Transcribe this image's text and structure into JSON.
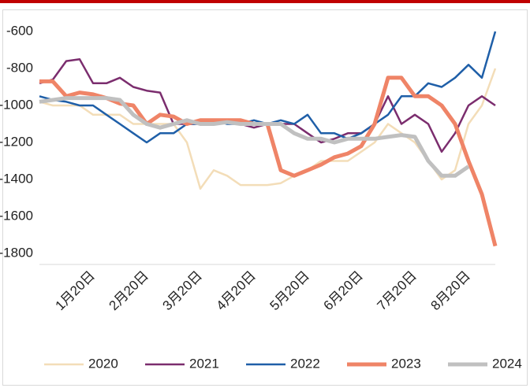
{
  "chart_data": {
    "type": "line",
    "categories": [
      null,
      null,
      null,
      null,
      "1月20日",
      null,
      null,
      null,
      "2月20日",
      null,
      null,
      null,
      "3月20日",
      null,
      null,
      null,
      "4月20日",
      null,
      null,
      null,
      "5月20日",
      null,
      null,
      null,
      "6月20日",
      null,
      null,
      null,
      "7月20日",
      null,
      null,
      null,
      "8月20日",
      null,
      null
    ],
    "ylim": [
      -1800,
      -600
    ],
    "yticks": [
      -1800,
      -1600,
      -1400,
      -1200,
      -1000,
      -800,
      -600
    ],
    "legend": "bottom",
    "series": [
      {
        "name": "2020",
        "color": "#f3ddb8",
        "values": [
          -980,
          -1000,
          -1000,
          -1000,
          -1050,
          -1050,
          -1050,
          -1100,
          -1100,
          -1100,
          -1100,
          -1200,
          -1450,
          -1350,
          -1380,
          -1430,
          -1430,
          -1430,
          -1420,
          -1380,
          -1350,
          -1300,
          -1300,
          -1300,
          -1250,
          -1200,
          -1100,
          -1150,
          -1200,
          -1300,
          -1400,
          -1350,
          -1100,
          -1000,
          -800
        ]
      },
      {
        "name": "2021",
        "color": "#7b2d6e",
        "values": [
          -880,
          -860,
          -760,
          -750,
          -880,
          -880,
          -850,
          -900,
          -920,
          -930,
          -1100,
          -1100,
          -1100,
          -1080,
          -1080,
          -1100,
          -1120,
          -1100,
          -1100,
          -1100,
          -1150,
          -1200,
          -1180,
          -1150,
          -1150,
          -1100,
          -950,
          -1100,
          -1050,
          -1100,
          -1250,
          -1150,
          -1000,
          -950,
          -1000
        ]
      },
      {
        "name": "2022",
        "color": "#1f5fa8",
        "values": [
          -950,
          -970,
          -980,
          -1000,
          -1000,
          -1050,
          -1100,
          -1150,
          -1200,
          -1150,
          -1150,
          -1100,
          -1100,
          -1080,
          -1100,
          -1100,
          -1080,
          -1100,
          -1080,
          -1100,
          -1050,
          -1150,
          -1150,
          -1180,
          -1150,
          -1100,
          -1050,
          -950,
          -950,
          -880,
          -900,
          -850,
          -780,
          -850,
          -600
        ]
      },
      {
        "name": "2023",
        "color": "#ef8467",
        "values": [
          -870,
          -870,
          -950,
          -930,
          -940,
          -960,
          -990,
          -1000,
          -1100,
          -1050,
          -1060,
          -1100,
          -1080,
          -1080,
          -1080,
          -1080,
          -1100,
          -1100,
          -1350,
          -1380,
          -1350,
          -1320,
          -1280,
          -1260,
          -1220,
          -1100,
          -850,
          -850,
          -950,
          -950,
          -1000,
          -1100,
          -1300,
          -1480,
          -1760
        ]
      },
      {
        "name": "2024",
        "color": "#c0c0c0",
        "values": [
          -980,
          -970,
          -960,
          -960,
          -960,
          -960,
          -970,
          -1050,
          -1100,
          -1120,
          -1100,
          -1080,
          -1100,
          -1100,
          -1090,
          -1100,
          -1100,
          -1100,
          -1100,
          -1150,
          -1180,
          -1180,
          -1200,
          -1180,
          -1180,
          -1180,
          -1170,
          -1160,
          -1170,
          -1300,
          -1380,
          -1380,
          -1330,
          null,
          null
        ]
      }
    ]
  }
}
